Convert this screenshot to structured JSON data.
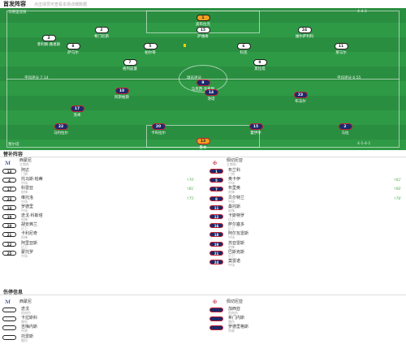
{
  "header": {
    "title": "首发阵容",
    "subtitle": "点击球员可查看本场详细数据"
  },
  "pitch": {
    "home_team": "马德里竞技",
    "away_team": "塞尔塔",
    "home_formation": "4-4-2",
    "away_formation": "4-1-4-1",
    "home_rating": "平均评分 7.14",
    "away_rating": "平均评分 6.55",
    "center_label": "球员评分",
    "home": {
      "gk": {
        "num": "1",
        "name": "奥布拉克"
      },
      "def": [
        {
          "num": "2",
          "name": "希门尼斯"
        },
        {
          "num": "15",
          "name": "萨维奇"
        },
        {
          "num": "24",
          "name": "维尔萨利科"
        },
        {
          "num": "3",
          "name": "菲利佩·路易斯"
        }
      ],
      "mid": [
        {
          "num": "8",
          "name": "萨乌尔"
        },
        {
          "num": "5",
          "name": "帕尔蒂"
        },
        {
          "num": "6",
          "name": "科克"
        },
        {
          "num": "11",
          "name": "莱马尔"
        }
      ],
      "fwd": [
        {
          "num": "7",
          "name": "格列兹曼"
        },
        {
          "num": "9",
          "name": "莫拉塔"
        }
      ]
    },
    "away": {
      "fwd": [
        {
          "num": "9",
          "name": "马克西·戈麦斯"
        }
      ],
      "mid": [
        {
          "num": "10",
          "name": "阿斯帕斯"
        },
        {
          "num": "14",
          "name": "洛塔"
        },
        {
          "num": "23",
          "name": "布法尔"
        }
      ],
      "dm": [
        {
          "num": "17",
          "name": "洛本"
        }
      ],
      "def": [
        {
          "num": "22",
          "name": "马约拉尔"
        },
        {
          "num": "20",
          "name": "卡布拉尔"
        },
        {
          "num": "15",
          "name": "霍伊尔"
        },
        {
          "num": "2",
          "name": "马拉"
        }
      ],
      "gk": {
        "num": "13",
        "name": "鲁本"
      }
    }
  },
  "subs": {
    "title": "替补阵容",
    "home_coach": {
      "name": "西蒙尼",
      "role": "主教练"
    },
    "away_coach": {
      "name": "佩切尼亚",
      "role": "主教练"
    },
    "home": [
      {
        "num": "13",
        "name": "阿达",
        "pos": "门将",
        "note": ""
      },
      {
        "num": "4",
        "name": "托马斯·帕蒂",
        "pos": "中场",
        "note": "↑70'"
      },
      {
        "num": "17",
        "name": "科雷亚",
        "pos": "前锋",
        "note": "↑81'"
      },
      {
        "num": "23",
        "name": "维托洛",
        "pos": "中场",
        "note": "↑75'"
      },
      {
        "num": "14",
        "name": "罗德里",
        "pos": "中场",
        "note": ""
      },
      {
        "num": "19",
        "name": "迭戈·科斯塔",
        "pos": "前锋",
        "note": ""
      },
      {
        "num": "20",
        "name": "胡安弗兰",
        "pos": "后卫",
        "note": ""
      },
      {
        "num": "21",
        "name": "卡利尼奇",
        "pos": "前锋",
        "note": ""
      },
      {
        "num": "22",
        "name": "阿里亚斯",
        "pos": "后卫",
        "note": ""
      },
      {
        "num": "25",
        "name": "蒙托罗",
        "pos": "中场",
        "note": ""
      }
    ],
    "away": [
      {
        "num": "1",
        "name": "布兰科",
        "pos": "门将",
        "note": ""
      },
      {
        "num": "5",
        "name": "奥卡伊",
        "pos": "中场",
        "note": "↑62'"
      },
      {
        "num": "7",
        "name": "布里奥",
        "pos": "前锋",
        "note": "↑66'"
      },
      {
        "num": "8",
        "name": "贝尔特兰",
        "pos": "中场",
        "note": "↑78'"
      },
      {
        "num": "11",
        "name": "桑托斯",
        "pos": "前锋",
        "note": ""
      },
      {
        "num": "12",
        "name": "卡斯特罗",
        "pos": "后卫",
        "note": ""
      },
      {
        "num": "16",
        "name": "萨尔塞多",
        "pos": "后卫",
        "note": ""
      },
      {
        "num": "18",
        "name": "阿尔瓦雷斯",
        "pos": "中场",
        "note": ""
      },
      {
        "num": "19",
        "name": "苏亚雷斯",
        "pos": "前锋",
        "note": ""
      },
      {
        "num": "21",
        "name": "巴斯克斯",
        "pos": "后卫",
        "note": ""
      },
      {
        "num": "24",
        "name": "莫雷诺",
        "pos": "中场",
        "note": ""
      }
    ]
  },
  "injuries": {
    "title": "伤停信息",
    "home_coach": {
      "name": "西蒙尼",
      "role": "主教练"
    },
    "away_coach": {
      "name": "佩切尼亚",
      "role": "主教练"
    },
    "home": [
      {
        "name": "迭戈",
        "reason": "肌肉伤"
      },
      {
        "name": "卡拉斯科",
        "reason": "膝伤"
      },
      {
        "name": "吉梅内斯",
        "reason": "停赛"
      },
      {
        "name": "托雷斯",
        "reason": "腿伤"
      }
    ],
    "away": [
      {
        "name": "加西亚",
        "reason": "肌肉伤"
      },
      {
        "name": "希门内斯",
        "reason": "膝伤"
      },
      {
        "name": "罗德里格斯",
        "reason": "停赛"
      }
    ]
  },
  "colors": {
    "pitch": "#2f9a46",
    "home_kit": "#ffffff",
    "away_kit": "#1b2a6b",
    "gk_kit": "#f0a020"
  }
}
